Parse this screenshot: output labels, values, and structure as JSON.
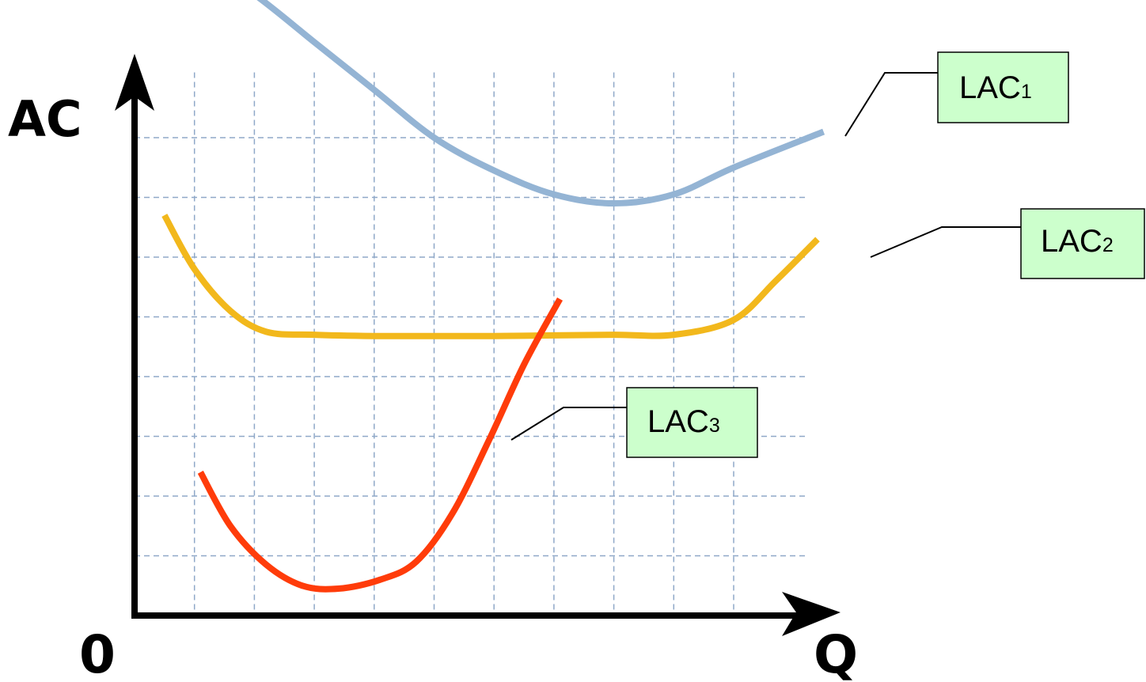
{
  "chart_data": {
    "type": "line",
    "ylabel": "AC",
    "xlabel": "Q",
    "origin_label": "0",
    "grid": true,
    "colors": {
      "grid": "#8fa8c8",
      "axis": "#000000",
      "label_fill": "#ccffcc"
    },
    "series": [
      {
        "name": "LAC",
        "subscript": "1",
        "color": "#94b4d4",
        "points": [
          [
            0.7,
            11.3
          ],
          [
            2,
            10.4
          ],
          [
            3,
            9.6
          ],
          [
            4,
            8.8
          ],
          [
            5,
            8.0
          ],
          [
            6,
            7.45
          ],
          [
            7,
            7.05
          ],
          [
            8,
            6.9
          ],
          [
            9,
            7.05
          ],
          [
            10,
            7.5
          ],
          [
            11.5,
            8.1
          ]
        ]
      },
      {
        "name": "LAC",
        "subscript": "2",
        "color": "#f2b81c",
        "points": [
          [
            0.5,
            6.7
          ],
          [
            1,
            5.8
          ],
          [
            1.6,
            5.1
          ],
          [
            2.2,
            4.75
          ],
          [
            3,
            4.7
          ],
          [
            4,
            4.68
          ],
          [
            5,
            4.68
          ],
          [
            6,
            4.68
          ],
          [
            7,
            4.69
          ],
          [
            8,
            4.7
          ],
          [
            9,
            4.7
          ],
          [
            10,
            4.95
          ],
          [
            10.7,
            5.6
          ],
          [
            11.4,
            6.3
          ]
        ]
      },
      {
        "name": "LAC",
        "subscript": "3",
        "color": "#ff3c0a",
        "points": [
          [
            1.1,
            2.4
          ],
          [
            1.6,
            1.5
          ],
          [
            2.2,
            0.85
          ],
          [
            2.8,
            0.5
          ],
          [
            3.4,
            0.45
          ],
          [
            4.1,
            0.6
          ],
          [
            4.7,
            0.9
          ],
          [
            5.3,
            1.7
          ],
          [
            5.9,
            2.9
          ],
          [
            6.5,
            4.2
          ],
          [
            7.1,
            5.3
          ]
        ]
      }
    ]
  }
}
